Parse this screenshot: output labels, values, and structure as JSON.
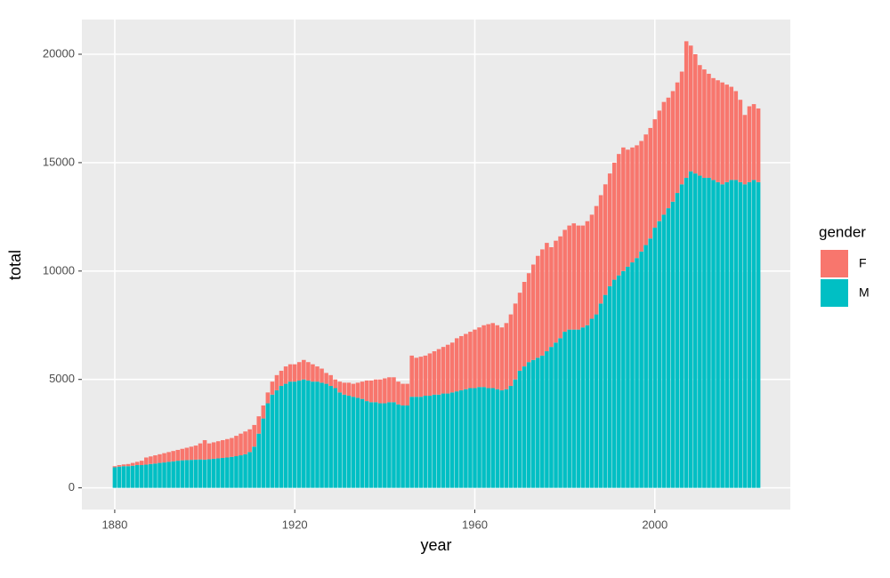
{
  "chart_data": {
    "type": "bar",
    "stacked": true,
    "x_label": "year",
    "y_label": "total",
    "legend_title": "gender",
    "x": [
      1880,
      1881,
      1882,
      1883,
      1884,
      1885,
      1886,
      1887,
      1888,
      1889,
      1890,
      1891,
      1892,
      1893,
      1894,
      1895,
      1896,
      1897,
      1898,
      1899,
      1900,
      1901,
      1902,
      1903,
      1904,
      1905,
      1906,
      1907,
      1908,
      1909,
      1910,
      1911,
      1912,
      1913,
      1914,
      1915,
      1916,
      1917,
      1918,
      1919,
      1920,
      1921,
      1922,
      1923,
      1924,
      1925,
      1926,
      1927,
      1928,
      1929,
      1930,
      1931,
      1932,
      1933,
      1934,
      1935,
      1936,
      1937,
      1938,
      1939,
      1940,
      1941,
      1942,
      1943,
      1944,
      1945,
      1946,
      1947,
      1948,
      1949,
      1950,
      1951,
      1952,
      1953,
      1954,
      1955,
      1956,
      1957,
      1958,
      1959,
      1960,
      1961,
      1962,
      1963,
      1964,
      1965,
      1966,
      1967,
      1968,
      1969,
      1970,
      1971,
      1972,
      1973,
      1974,
      1975,
      1976,
      1977,
      1978,
      1979,
      1980,
      1981,
      1982,
      1983,
      1984,
      1985,
      1986,
      1987,
      1988,
      1989,
      1990,
      1991,
      1992,
      1993,
      1994,
      1995,
      1996,
      1997,
      1998,
      1999,
      2000,
      2001,
      2002,
      2003,
      2004,
      2005,
      2006,
      2007,
      2008,
      2009,
      2010,
      2011,
      2012,
      2013,
      2014,
      2015,
      2016,
      2017,
      2018,
      2019,
      2020,
      2021,
      2022,
      2023
    ],
    "series": [
      {
        "name": "F",
        "color": "#F8766D",
        "values": [
          50,
          70,
          80,
          100,
          130,
          150,
          200,
          330,
          350,
          380,
          400,
          430,
          450,
          480,
          500,
          530,
          570,
          610,
          650,
          740,
          900,
          730,
          760,
          790,
          820,
          850,
          870,
          940,
          1000,
          1050,
          1050,
          1000,
          800,
          600,
          500,
          600,
          700,
          700,
          800,
          800,
          800,
          850,
          900,
          850,
          800,
          700,
          650,
          500,
          500,
          400,
          500,
          550,
          600,
          600,
          700,
          800,
          950,
          1000,
          1050,
          1100,
          1150,
          1150,
          1150,
          1050,
          1000,
          1000,
          1900,
          1800,
          1850,
          1850,
          1950,
          2000,
          2100,
          2150,
          2250,
          2300,
          2450,
          2500,
          2550,
          2600,
          2700,
          2750,
          2850,
          2950,
          3000,
          2950,
          2900,
          3050,
          3300,
          3500,
          3600,
          3900,
          4100,
          4400,
          4700,
          4900,
          5000,
          4600,
          4700,
          4700,
          4700,
          4800,
          4900,
          4800,
          4700,
          4800,
          4800,
          5000,
          5000,
          5100,
          5200,
          5400,
          5600,
          5700,
          5400,
          5300,
          5200,
          5100,
          5100,
          5100,
          5000,
          5100,
          5200,
          5100,
          5100,
          5100,
          5200,
          6300,
          5800,
          5500,
          5100,
          5000,
          4800,
          4700,
          4700,
          4700,
          4500,
          4300,
          4100,
          3800,
          3200,
          3500,
          3500,
          3400
        ]
      },
      {
        "name": "M",
        "color": "#00BFC4",
        "values": [
          950,
          980,
          1000,
          1000,
          1020,
          1050,
          1050,
          1070,
          1100,
          1120,
          1150,
          1170,
          1200,
          1220,
          1250,
          1270,
          1280,
          1290,
          1300,
          1310,
          1300,
          1320,
          1340,
          1360,
          1380,
          1400,
          1430,
          1460,
          1500,
          1550,
          1650,
          1900,
          2500,
          3200,
          3900,
          4300,
          4500,
          4700,
          4800,
          4900,
          4900,
          4950,
          5000,
          4950,
          4900,
          4900,
          4850,
          4800,
          4700,
          4600,
          4400,
          4300,
          4250,
          4200,
          4150,
          4100,
          4000,
          3950,
          3950,
          3900,
          3900,
          3950,
          3950,
          3850,
          3800,
          3800,
          4200,
          4200,
          4200,
          4250,
          4250,
          4300,
          4300,
          4350,
          4350,
          4400,
          4450,
          4500,
          4550,
          4600,
          4600,
          4650,
          4650,
          4600,
          4600,
          4550,
          4500,
          4550,
          4700,
          5000,
          5400,
          5600,
          5800,
          5900,
          6000,
          6100,
          6300,
          6500,
          6700,
          6900,
          7200,
          7300,
          7300,
          7300,
          7400,
          7500,
          7800,
          8000,
          8500,
          8900,
          9300,
          9600,
          9800,
          10000,
          10200,
          10400,
          10600,
          10900,
          11200,
          11500,
          12000,
          12300,
          12600,
          12900,
          13200,
          13600,
          14000,
          14300,
          14600,
          14500,
          14400,
          14300,
          14300,
          14200,
          14100,
          14000,
          14100,
          14200,
          14200,
          14100,
          14000,
          14100,
          14200,
          14100
        ]
      }
    ],
    "xlim": [
      1872.7,
      2030.1
    ],
    "xticks": [
      1880,
      1920,
      1960,
      2000
    ],
    "ylim": [
      -1000,
      21600
    ],
    "yticks": [
      0,
      5000,
      10000,
      15000,
      20000
    ],
    "grid": true
  }
}
